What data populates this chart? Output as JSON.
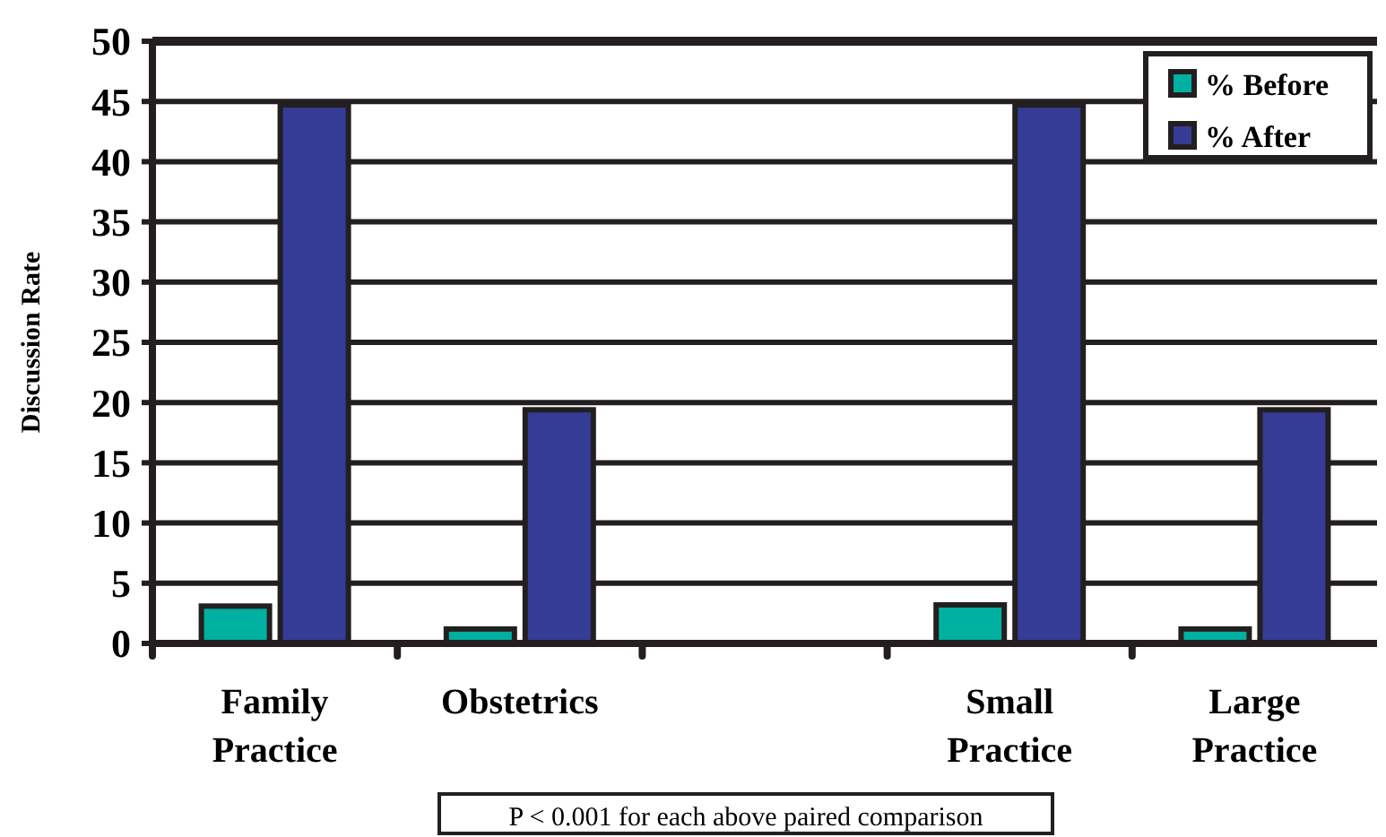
{
  "chart_data": {
    "type": "bar",
    "ylabel": "Discussion Rate",
    "categories": [
      "Family Practice",
      "Obstetrics",
      null,
      "Small Practice",
      "Large Practice"
    ],
    "series": [
      {
        "name": "% Before",
        "color": "#00b0a0",
        "values": [
          3.1,
          1.2,
          null,
          3.2,
          1.2
        ]
      },
      {
        "name": "% After",
        "color": "#353c96",
        "values": [
          44.7,
          19.4,
          null,
          44.7,
          19.4
        ]
      }
    ],
    "ylim": [
      0,
      50
    ],
    "yticks": [
      0,
      5,
      10,
      15,
      20,
      25,
      30,
      35,
      40,
      45,
      50
    ],
    "grid": "y",
    "legend": "top right",
    "annotations": [
      "P < 0.001 for each above paired comparison"
    ]
  }
}
